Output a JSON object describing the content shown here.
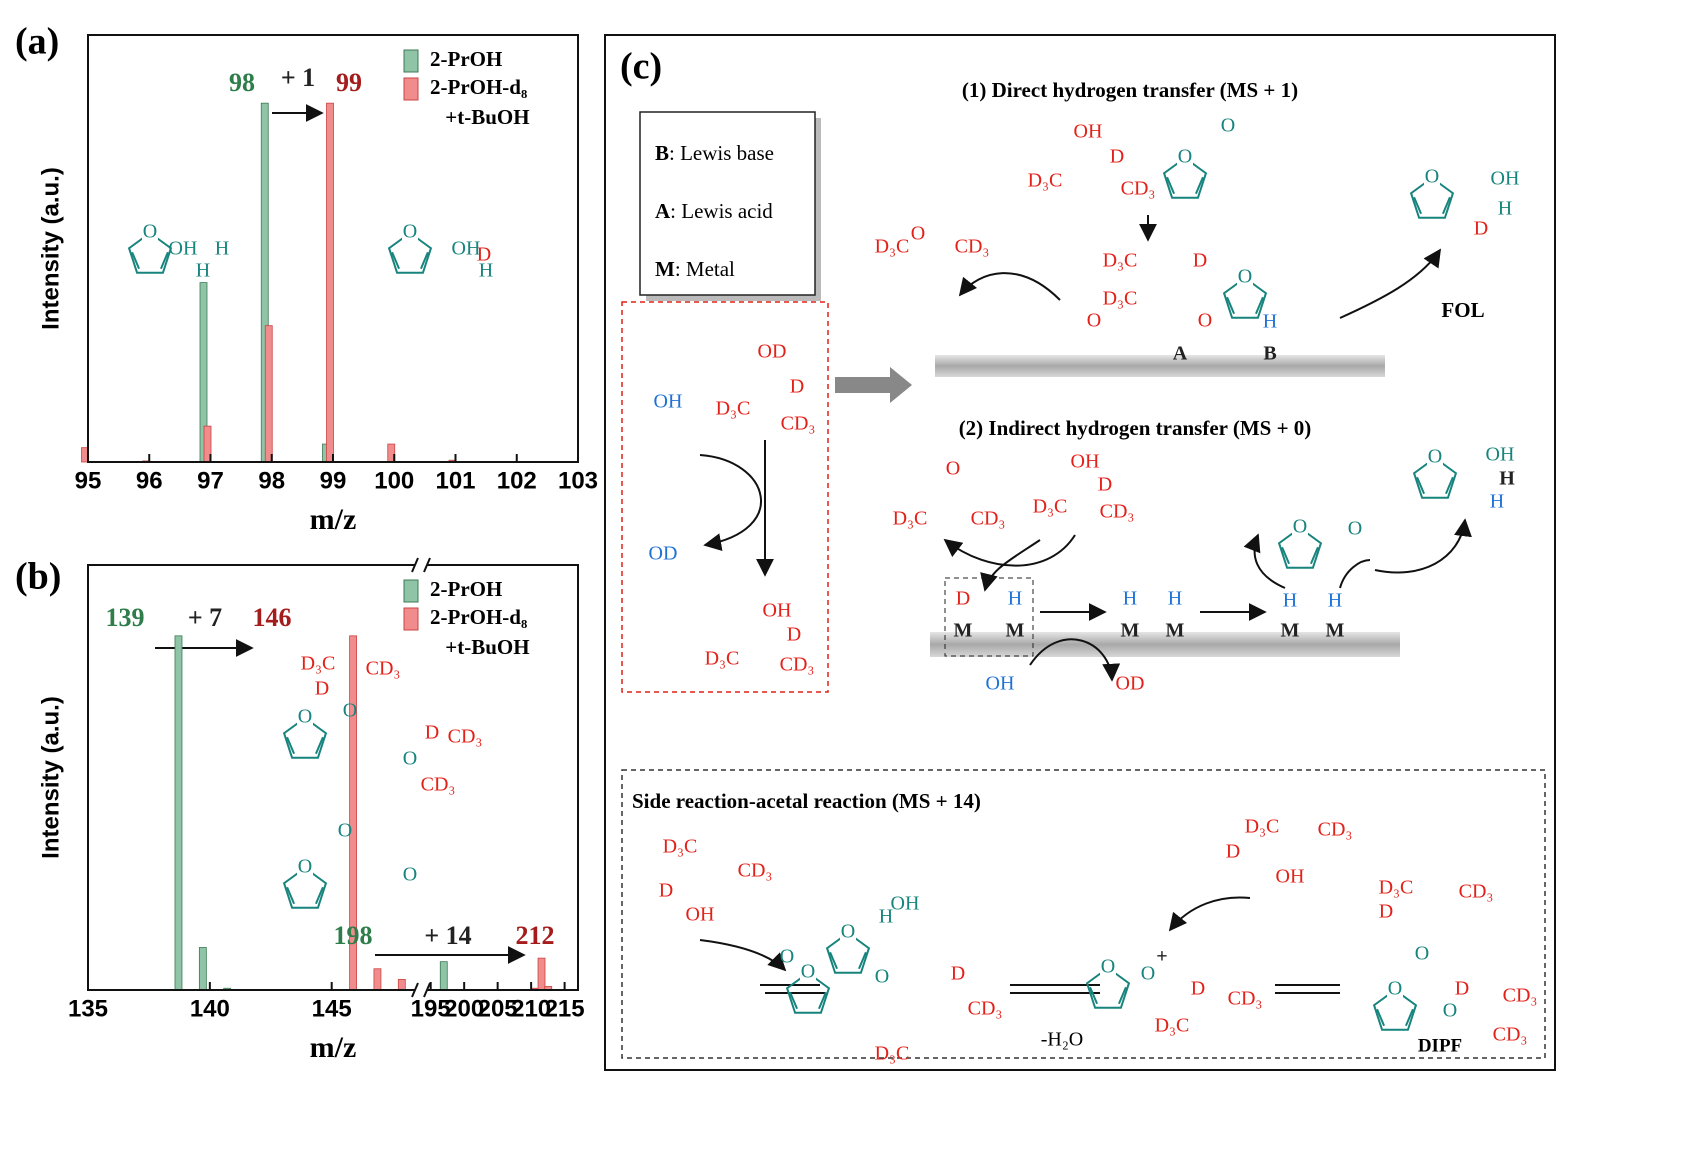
{
  "chart_data": [
    {
      "type": "bar",
      "panel_label": "(a)",
      "xlabel": "m/z",
      "ylabel": "Intensity (a.u.)",
      "x": [
        95,
        96,
        97,
        98,
        99,
        100,
        101
      ],
      "series": [
        {
          "name": "2-PrOH",
          "color": "#8fc4a6",
          "values": [
            0,
            0,
            50,
            100,
            5,
            0,
            0
          ]
        },
        {
          "name": "2-PrOH-d₈ +t-BuOH",
          "color": "#f08c8c",
          "values": [
            4,
            0.3,
            10,
            38,
            100,
            5,
            0.5
          ]
        }
      ],
      "xlim": [
        95,
        103
      ],
      "xticks": [
        95,
        96,
        97,
        98,
        99,
        100,
        101,
        102,
        103
      ],
      "ylim": [
        0,
        119
      ],
      "annotations": [
        {
          "text": "98",
          "color": "#2e7d4a"
        },
        {
          "text": "+ 1",
          "color": "#222222"
        },
        {
          "text": "99",
          "color": "#a51c1c"
        }
      ]
    },
    {
      "type": "bar",
      "panel_label": "(b)",
      "xlabel": "m/z",
      "ylabel": "Intensity (a.u.)",
      "x": [
        139,
        140,
        141,
        146,
        147,
        148,
        198,
        211,
        212,
        213
      ],
      "series": [
        {
          "name": "2-PrOH",
          "color": "#8fc4a6",
          "values": [
            100,
            12,
            0.5,
            0,
            0,
            0,
            8,
            0,
            0,
            0
          ]
        },
        {
          "name": "2-PrOH-d₈ +t-BuOH",
          "color": "#f08c8c",
          "values": [
            0,
            0,
            0,
            100,
            6,
            3,
            0,
            0.5,
            9,
            1
          ]
        }
      ],
      "xlim": [
        135,
        217
      ],
      "xbreak": [
        148.5,
        194.3
      ],
      "xticks": [
        135,
        140,
        145,
        195,
        200,
        205,
        210,
        215
      ],
      "ylim": [
        0,
        120
      ],
      "annotations": [
        {
          "text": "139",
          "color": "#2e7d4a"
        },
        {
          "text": "+ 7",
          "color": "#222222"
        },
        {
          "text": "146",
          "color": "#a51c1c"
        },
        {
          "text": "198",
          "color": "#2e7d4a"
        },
        {
          "text": "+ 14",
          "color": "#222222"
        },
        {
          "text": "212",
          "color": "#a51c1c"
        }
      ]
    }
  ],
  "scheme": {
    "panel_label": "(c)",
    "heading_1": "(1) Direct hydrogen transfer (MS + 1)",
    "heading_2": "(2) Indirect hydrogen transfer (MS + 0)",
    "heading_3": "Side reaction-acetal reaction (MS + 14)",
    "legend": [
      {
        "key": "B",
        "text": ": Lewis base"
      },
      {
        "key": "A",
        "text": ": Lewis acid"
      },
      {
        "key": "M",
        "text": ": Metal"
      }
    ],
    "fol": "FOL",
    "dipf": "DIPF",
    "water": "-H₂O",
    "ring_atom": "O",
    "labels": [
      {
        "color": "#e32119",
        "texts": [
          "D",
          "D₃C",
          "CD₃",
          "D",
          "D",
          "CD₃",
          "CD₃",
          "OH",
          "D",
          "D₃C",
          "CD₃",
          "O",
          "D₃C",
          "CD₃",
          "D₃C",
          "D",
          "D₃C",
          "O",
          "O",
          "D",
          "OD",
          "D",
          "D₃C",
          "CD₃",
          "OH",
          "D",
          "D₃C",
          "CD₃",
          "O",
          "D₃C",
          "CD₃",
          "OH",
          "D",
          "D₃C",
          "CD₃",
          "D",
          "OD",
          "D₃C",
          "CD₃",
          "D",
          "OH",
          "D₃C",
          "CD₃",
          "D",
          "OH",
          "D",
          "CD₃",
          "D₃C",
          "D",
          "CD₃",
          "D₃C",
          "D₃C",
          "CD₃",
          "D",
          "D",
          "CD₃",
          "CD₃"
        ]
      },
      {
        "color": "#17847d",
        "texts": [
          "OH",
          "H",
          "H",
          "OH",
          "H",
          "O",
          "O",
          "O",
          "O",
          "O",
          "OH",
          "H",
          "O",
          "OH",
          "O",
          "H",
          "OH",
          "O",
          "O",
          "O",
          "O"
        ]
      },
      {
        "color": "#1e72d6",
        "texts": [
          "OH",
          "OD",
          "H",
          "H",
          "H",
          "H",
          "H",
          "H",
          "OH",
          "H"
        ]
      },
      {
        "color": "#222222",
        "texts": [
          "A",
          "B",
          "M",
          "M",
          "M",
          "M",
          "M",
          "M",
          "H",
          "+"
        ]
      }
    ]
  }
}
